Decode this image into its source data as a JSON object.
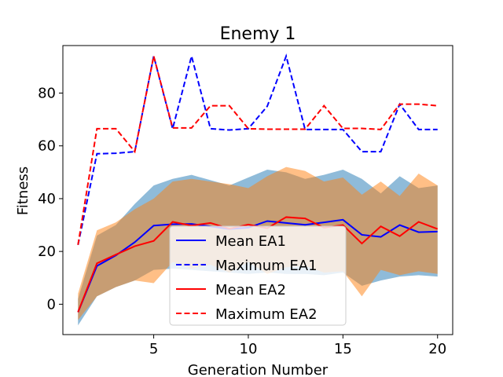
{
  "chart_data": {
    "type": "line",
    "title": "Enemy 1",
    "xlabel": "Generation Number",
    "ylabel": "Fitness",
    "xlim": [
      0.2,
      20.8
    ],
    "ylim": [
      -11.5,
      98
    ],
    "xticks": [
      5,
      10,
      15,
      20
    ],
    "yticks": [
      0,
      20,
      40,
      60,
      80
    ],
    "x": [
      1,
      2,
      3,
      4,
      5,
      6,
      7,
      8,
      9,
      10,
      11,
      12,
      13,
      14,
      15,
      16,
      17,
      18,
      19,
      20
    ],
    "series": [
      {
        "name": "Mean EA1",
        "color": "#0000ff",
        "dash": "solid",
        "values": [
          -3,
          14.5,
          18.5,
          23.5,
          29.8,
          30.3,
          30.4,
          29.5,
          28.5,
          29,
          31.5,
          30.8,
          30.1,
          31,
          32,
          26.3,
          25.5,
          30,
          27.3,
          27.5
        ],
        "band_upper": [
          2,
          26,
          30,
          38,
          45,
          47.5,
          49,
          47,
          45,
          48,
          51,
          50,
          47.5,
          49,
          51,
          47.5,
          42,
          48.5,
          44,
          45
        ],
        "band_lower": [
          -8,
          3,
          6.5,
          9,
          13,
          13.5,
          13,
          12.5,
          12,
          11.5,
          12,
          11.5,
          11.5,
          11,
          12,
          7,
          9,
          10.5,
          11,
          10.5
        ],
        "band_color": "#1f77b4"
      },
      {
        "name": "Maximum EA1",
        "color": "#0000ff",
        "dash": "dashed",
        "values": [
          22.5,
          57,
          57.2,
          57.8,
          94,
          66.5,
          94,
          66.5,
          66,
          66.5,
          75,
          94,
          66.2,
          66.2,
          66.2,
          57.8,
          57.8,
          75.8,
          66.2,
          66.2
        ]
      },
      {
        "name": "Mean EA2",
        "color": "#ff0000",
        "dash": "solid",
        "values": [
          -3,
          15.5,
          18.8,
          22,
          24,
          31.2,
          29.8,
          30.8,
          28.6,
          30.2,
          28.8,
          33,
          32.5,
          29,
          30,
          23,
          29.5,
          25.8,
          31.2,
          28.5
        ],
        "band_upper": [
          4,
          28,
          31,
          36,
          40,
          46.5,
          47.5,
          46.5,
          45.5,
          44,
          48.5,
          52,
          50.5,
          46.5,
          48,
          41.5,
          46.5,
          41,
          49.5,
          45
        ],
        "band_lower": [
          -6,
          3,
          6.5,
          9,
          8,
          16,
          13.5,
          15,
          12,
          16,
          11.5,
          14,
          14.5,
          12,
          12.5,
          3,
          13,
          11,
          12.5,
          11.5
        ],
        "band_color": "#ff7f0e"
      },
      {
        "name": "Maximum EA2",
        "color": "#ff0000",
        "dash": "dashed",
        "values": [
          22.5,
          66.5,
          66.5,
          57.8,
          94,
          66.8,
          66.8,
          75.2,
          75.2,
          66.5,
          66.3,
          66.3,
          66.3,
          75.2,
          66.6,
          66.6,
          66.2,
          75.8,
          75.8,
          75.2
        ]
      }
    ],
    "legend_position": "bottom-center",
    "grid": false
  }
}
